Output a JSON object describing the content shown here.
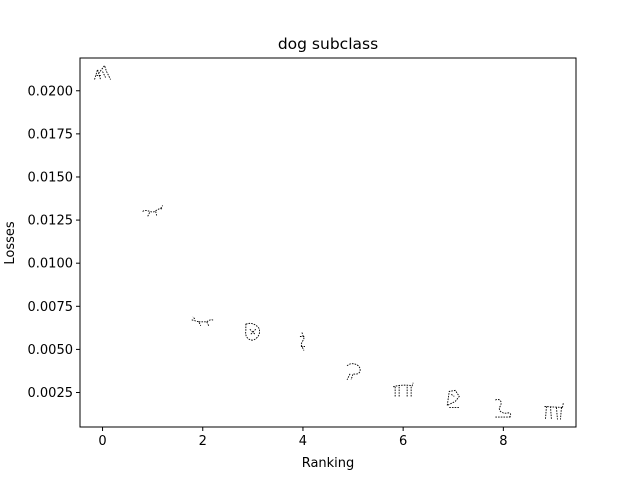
{
  "chart_data": {
    "type": "scatter",
    "title": "dog subclass",
    "xlabel": "Ranking",
    "ylabel": "Losses",
    "xlim": [
      -0.45,
      9.45
    ],
    "ylim": [
      0.0005,
      0.0219
    ],
    "x_ticks": [
      0,
      2,
      4,
      6,
      8
    ],
    "x_tick_labels": [
      "0",
      "2",
      "4",
      "6",
      "8"
    ],
    "y_ticks": [
      0.0025,
      0.005,
      0.0075,
      0.01,
      0.0125,
      0.015,
      0.0175,
      0.02
    ],
    "y_tick_labels": [
      "0.0025",
      "0.0050",
      "0.0075",
      "0.0100",
      "0.0125",
      "0.0150",
      "0.0175",
      "0.0200"
    ],
    "grid": false,
    "marker": "dog-sketch-thumbnail",
    "points": [
      {
        "x": 0,
        "y": 0.021
      },
      {
        "x": 1,
        "y": 0.013
      },
      {
        "x": 2,
        "y": 0.0066
      },
      {
        "x": 3,
        "y": 0.006
      },
      {
        "x": 4,
        "y": 0.0054
      },
      {
        "x": 5,
        "y": 0.0037
      },
      {
        "x": 6,
        "y": 0.0026
      },
      {
        "x": 7,
        "y": 0.0021
      },
      {
        "x": 8,
        "y": 0.0016
      },
      {
        "x": 9,
        "y": 0.0014
      }
    ]
  }
}
